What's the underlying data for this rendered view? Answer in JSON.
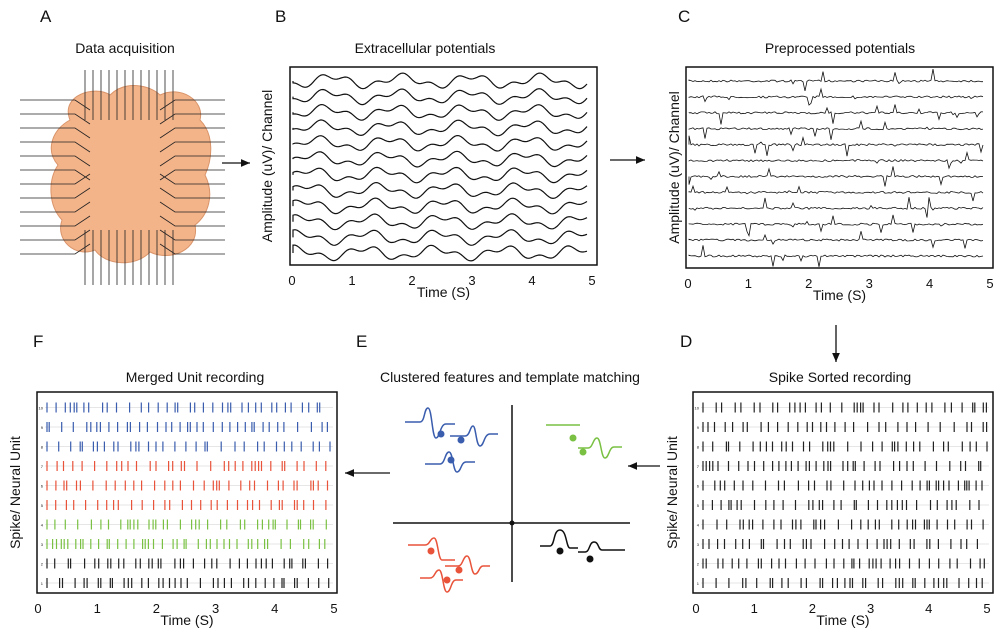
{
  "panels": [
    {
      "letter": "A",
      "title": "Data acquisition"
    },
    {
      "letter": "B",
      "title": "Extracellular potentials",
      "x_label": "Time (S)",
      "y_label": "Amplitude (uV)/ Channel",
      "x_ticks": [
        0,
        1,
        2,
        3,
        4,
        5
      ]
    },
    {
      "letter": "C",
      "title": "Preprocessed potentials",
      "x_label": "Time (S)",
      "y_label": "Amplitude (uV)/ Channel",
      "x_ticks": [
        0,
        1,
        2,
        3,
        4,
        5
      ]
    },
    {
      "letter": "D",
      "title": "Spike Sorted recording",
      "x_label": "Time (S)",
      "y_label": "Spike/ Neural Unit",
      "x_ticks": [
        0,
        1,
        2,
        3,
        4,
        5
      ],
      "y_ticks": [
        1,
        2,
        3,
        4,
        5,
        6,
        7,
        8,
        9,
        10
      ]
    },
    {
      "letter": "E",
      "title": "Clustered features and template matching"
    },
    {
      "letter": "F",
      "title": "Merged Unit recording",
      "x_label": "Time (S)",
      "y_label": "Spike/ Neural Unit",
      "x_ticks": [
        0,
        1,
        2,
        3,
        4,
        5
      ],
      "y_ticks": [
        1,
        2,
        3,
        4,
        5,
        6,
        7,
        8,
        9,
        10
      ]
    }
  ]
}
